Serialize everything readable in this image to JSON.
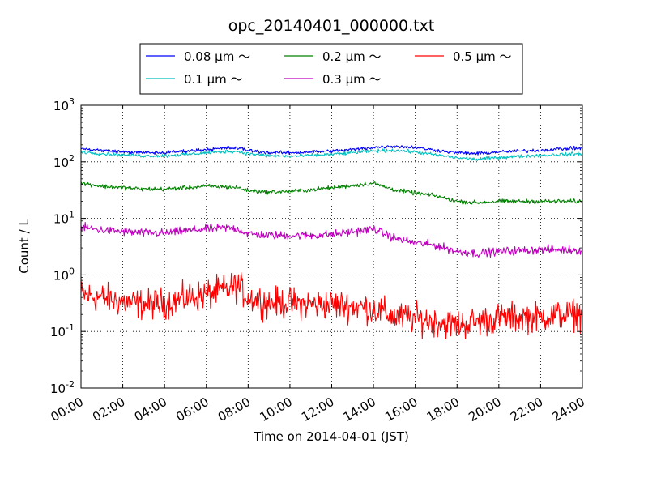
{
  "chart_data": {
    "type": "line",
    "title": "opc_20140401_000000.txt",
    "xlabel": "Time on 2014-04-01 (JST)",
    "ylabel": "Count / L",
    "yscale": "log",
    "xlim": [
      0,
      24
    ],
    "ylim": [
      0.01,
      1000
    ],
    "grid": true,
    "legend_position": "top-center, outside plot",
    "x_ticks": [
      0,
      2,
      4,
      6,
      8,
      10,
      12,
      14,
      16,
      18,
      20,
      22,
      24
    ],
    "x_tick_labels": [
      "00:00",
      "02:00",
      "04:00",
      "06:00",
      "08:00",
      "10:00",
      "12:00",
      "14:00",
      "16:00",
      "18:00",
      "20:00",
      "22:00",
      "24:00"
    ],
    "y_ticks": [
      {
        "value": 0.01,
        "base": "10",
        "exp": "-2"
      },
      {
        "value": 0.1,
        "base": "10",
        "exp": "-1"
      },
      {
        "value": 1,
        "base": "10",
        "exp": "0"
      },
      {
        "value": 10,
        "base": "10",
        "exp": "1"
      },
      {
        "value": 100,
        "base": "10",
        "exp": "2"
      },
      {
        "value": 1000,
        "base": "10",
        "exp": "3"
      }
    ],
    "x": [
      0,
      1,
      2,
      3,
      4,
      5,
      6,
      7,
      7.5,
      8,
      9,
      10,
      11,
      12,
      13,
      14,
      15,
      16,
      17,
      18,
      19,
      20,
      21,
      22,
      23,
      24
    ],
    "series": [
      {
        "name": "0.08 μm ～",
        "color": "#0000ff",
        "noise": 0.025,
        "values": [
          170,
          160,
          150,
          145,
          145,
          155,
          165,
          175,
          175,
          160,
          145,
          145,
          150,
          155,
          165,
          180,
          190,
          180,
          160,
          145,
          140,
          150,
          155,
          160,
          170,
          175
        ]
      },
      {
        "name": "0.1 μm ～",
        "color": "#00bfbf",
        "noise": 0.025,
        "values": [
          150,
          140,
          132,
          128,
          128,
          135,
          145,
          152,
          152,
          140,
          128,
          125,
          130,
          135,
          145,
          155,
          160,
          150,
          132,
          118,
          110,
          120,
          125,
          130,
          135,
          140
        ]
      },
      {
        "name": "0.2 μm ～",
        "color": "#008000",
        "noise": 0.03,
        "values": [
          42,
          37,
          35,
          33,
          33,
          35,
          37,
          36,
          35,
          31,
          29,
          30,
          32,
          35,
          38,
          42,
          32,
          28,
          25,
          20,
          19,
          20,
          20,
          20,
          20,
          20
        ]
      },
      {
        "name": "0.3 μm ～",
        "color": "#bf00bf",
        "noise": 0.06,
        "values": [
          7,
          6.2,
          5.8,
          5.5,
          5.5,
          6,
          6.5,
          6.8,
          6.5,
          5.3,
          5,
          5,
          5,
          5.2,
          5.8,
          6.5,
          4.5,
          3.7,
          3.3,
          2.6,
          2.4,
          2.6,
          2.7,
          2.8,
          2.8,
          2.7
        ]
      },
      {
        "name": "0.5 μm ～",
        "color": "#ff0000",
        "noise": 0.22,
        "values": [
          0.45,
          0.4,
          0.33,
          0.3,
          0.32,
          0.38,
          0.45,
          0.55,
          0.65,
          0.4,
          0.32,
          0.32,
          0.3,
          0.3,
          0.28,
          0.25,
          0.18,
          0.17,
          0.15,
          0.13,
          0.15,
          0.17,
          0.18,
          0.18,
          0.2,
          0.2
        ]
      }
    ]
  }
}
